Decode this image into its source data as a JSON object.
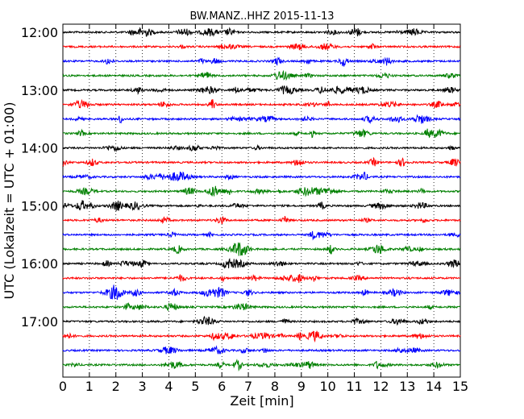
{
  "chart_data": {
    "type": "line",
    "title": "BW.MANZ..HHZ 2015-11-13",
    "xlabel": "Zeit  [min]",
    "ylabel": "UTC (Lokalzeit = UTC + 01:00)",
    "xlim": [
      0,
      15
    ],
    "x_ticks": [
      "0",
      "1",
      "2",
      "3",
      "4",
      "5",
      "6",
      "7",
      "8",
      "9",
      "10",
      "11",
      "12",
      "13",
      "14",
      "15"
    ],
    "y_ticks": [
      {
        "label": "12:00",
        "row": 0
      },
      {
        "label": "13:00",
        "row": 4
      },
      {
        "label": "14:00",
        "row": 8
      },
      {
        "label": "15:00",
        "row": 12
      },
      {
        "label": "16:00",
        "row": 16
      },
      {
        "label": "17:00",
        "row": 20
      }
    ],
    "row_interval_minutes": 15,
    "rows": 24,
    "color_cycle": [
      "#000000",
      "#ff0000",
      "#0000ff",
      "#008000"
    ],
    "grid": "vertical dotted"
  }
}
